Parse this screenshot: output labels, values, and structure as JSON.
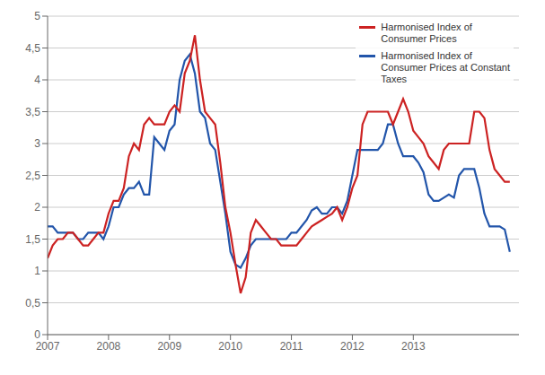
{
  "chart_data": {
    "type": "line",
    "x": [
      2007.0,
      2007.0833333333333,
      2007.1666666666667,
      2007.25,
      2007.3333333333333,
      2007.4166666666667,
      2007.5,
      2007.5833333333333,
      2007.6666666666667,
      2007.75,
      2007.8333333333333,
      2007.9166666666667,
      2008.0,
      2008.0833333333333,
      2008.1666666666667,
      2008.25,
      2008.3333333333333,
      2008.4166666666667,
      2008.5,
      2008.5833333333333,
      2008.6666666666667,
      2008.75,
      2008.8333333333333,
      2008.9166666666667,
      2009.0,
      2009.0833333333333,
      2009.1666666666667,
      2009.25,
      2009.3333333333333,
      2009.4166666666667,
      2009.5,
      2009.5833333333333,
      2009.6666666666667,
      2009.75,
      2009.8333333333333,
      2009.9166666666667,
      2010.0,
      2010.0833333333333,
      2010.1666666666667,
      2010.25,
      2010.3333333333333,
      2010.4166666666667,
      2010.5,
      2010.5833333333333,
      2010.6666666666667,
      2010.75,
      2010.8333333333333,
      2010.9166666666667,
      2011.0,
      2011.0833333333333,
      2011.1666666666667,
      2011.25,
      2011.3333333333333,
      2011.4166666666667,
      2011.5,
      2011.5833333333333,
      2011.6666666666667,
      2011.75,
      2011.8333333333333,
      2011.9166666666667,
      2012.0,
      2012.0833333333333,
      2012.1666666666667,
      2012.25,
      2012.3333333333333,
      2012.4166666666667,
      2012.5,
      2012.5833333333333,
      2012.6666666666667,
      2012.75,
      2012.8333333333333,
      2012.9166666666667,
      2013.0,
      2013.0833333333333,
      2013.1666666666667,
      2013.25,
      2013.3333333333333,
      2013.4166666666667,
      2013.5,
      2013.5833333333333,
      2013.6666666666667,
      2013.75,
      2013.8333333333333,
      2013.9166666666667,
      2014.0,
      2014.0833333333333,
      2014.1666666666667,
      2014.25,
      2014.3333333333333,
      2014.4166666666667,
      2014.5,
      2014.5833333333333
    ],
    "series": [
      {
        "name": "Harmonised Index of\nConsumer Prices",
        "color": "#cc2222",
        "values": [
          1.2,
          1.4,
          1.5,
          1.5,
          1.6,
          1.6,
          1.5,
          1.4,
          1.4,
          1.5,
          1.6,
          1.6,
          1.9,
          2.1,
          2.1,
          2.3,
          2.8,
          3.0,
          2.9,
          3.3,
          3.4,
          3.3,
          3.3,
          3.3,
          3.5,
          3.6,
          3.5,
          4.1,
          4.3,
          4.7,
          4.0,
          3.5,
          3.4,
          3.3,
          2.7,
          2.0,
          1.6,
          1.1,
          0.65,
          0.9,
          1.6,
          1.8,
          1.7,
          1.6,
          1.5,
          1.5,
          1.4,
          1.4,
          1.4,
          1.4,
          1.5,
          1.6,
          1.7,
          1.75,
          1.8,
          1.85,
          1.9,
          2.0,
          1.8,
          2.0,
          2.3,
          2.5,
          3.3,
          3.5,
          3.5,
          3.5,
          3.5,
          3.5,
          3.3,
          3.5,
          3.7,
          3.5,
          3.2,
          3.1,
          3.0,
          2.8,
          2.7,
          2.6,
          2.9,
          3.0,
          3.0,
          3.0,
          3.0,
          3.0,
          3.5,
          3.5,
          3.4,
          2.9,
          2.6,
          2.5,
          2.4,
          2.4
        ]
      },
      {
        "name": "Harmonised Index of\nConsumer Prices at Constant\nTaxes",
        "color": "#2255aa",
        "values": [
          1.7,
          1.7,
          1.6,
          1.6,
          1.6,
          1.6,
          1.5,
          1.5,
          1.6,
          1.6,
          1.6,
          1.5,
          1.7,
          2.0,
          2.0,
          2.2,
          2.3,
          2.3,
          2.4,
          2.2,
          2.2,
          3.1,
          3.0,
          2.9,
          3.2,
          3.3,
          4.0,
          4.3,
          4.4,
          4.1,
          3.5,
          3.4,
          3.0,
          2.9,
          2.4,
          1.9,
          1.3,
          1.1,
          1.05,
          1.2,
          1.4,
          1.5,
          1.5,
          1.5,
          1.5,
          1.5,
          1.5,
          1.5,
          1.6,
          1.6,
          1.7,
          1.8,
          1.95,
          2.0,
          1.9,
          1.9,
          2.0,
          2.0,
          1.9,
          2.1,
          2.5,
          2.9,
          2.9,
          2.9,
          2.9,
          2.9,
          3.0,
          3.3,
          3.3,
          3.0,
          2.8,
          2.8,
          2.8,
          2.7,
          2.55,
          2.2,
          2.1,
          2.1,
          2.15,
          2.2,
          2.15,
          2.5,
          2.6,
          2.6,
          2.6,
          2.3,
          1.9,
          1.7,
          1.7,
          1.7,
          1.65,
          1.3
        ]
      }
    ],
    "xlim": [
      2007.0,
      2014.7333333333333
    ],
    "xticks": [
      2007,
      2008,
      2009,
      2010,
      2011,
      2012,
      2013
    ],
    "ylim": [
      0,
      5
    ],
    "yticks": [
      0,
      {
        "value": 0.5,
        "label": "0,5"
      },
      1,
      {
        "value": 1.5,
        "label": "1,5"
      },
      2,
      {
        "value": 2.5,
        "label": "2,5"
      },
      3,
      {
        "value": 3.5,
        "label": "3,5"
      },
      4,
      {
        "value": 4.5,
        "label": "4,5"
      },
      5
    ],
    "grid": true,
    "legend": "upper right"
  }
}
